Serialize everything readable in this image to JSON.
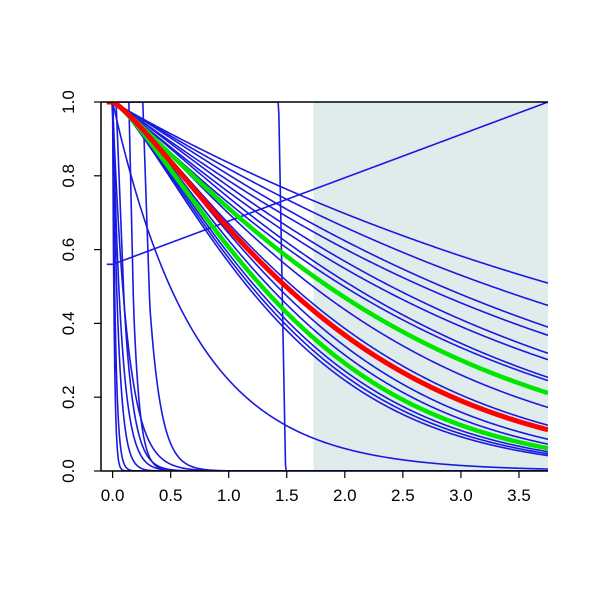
{
  "chart_data": {
    "type": "line",
    "title": "",
    "xlabel": "",
    "ylabel": "",
    "xlim": [
      -0.1,
      3.75
    ],
    "ylim": [
      0,
      1
    ],
    "grid": false,
    "legend": "none",
    "shaded_region": {
      "x_from": 1.73,
      "x_to": 3.75,
      "color": "#e0ecec"
    },
    "x_ticks": [
      "0.0",
      "0.5",
      "1.0",
      "1.5",
      "2.0",
      "2.5",
      "3.0",
      "3.5"
    ],
    "x_tick_values": [
      0,
      0.5,
      1.0,
      1.5,
      2.0,
      2.5,
      3.0,
      3.5
    ],
    "y_ticks": [
      "0.0",
      "0.2",
      "0.4",
      "0.6",
      "0.8",
      "1.0"
    ],
    "y_tick_values": [
      0,
      0.2,
      0.4,
      0.6,
      0.8,
      1.0
    ],
    "colors": {
      "blue": "#1a1adf",
      "red": "#ff0000",
      "green": "#00e600",
      "axis": "#000000"
    },
    "series": [
      {
        "color": "blue",
        "kind": "pow",
        "k": 0.18,
        "p": 1
      },
      {
        "color": "blue",
        "kind": "pow",
        "k": 0.2,
        "p": 1.05
      },
      {
        "color": "blue",
        "kind": "pow",
        "k": 0.22,
        "p": 1.1
      },
      {
        "color": "blue",
        "kind": "pow",
        "k": 0.24,
        "p": 1.08
      },
      {
        "color": "blue",
        "kind": "pow",
        "k": 0.26,
        "p": 1.12
      },
      {
        "color": "blue",
        "kind": "pow",
        "k": 0.28,
        "p": 1.1
      },
      {
        "color": "blue",
        "kind": "pow",
        "k": 0.3,
        "p": 1.15
      },
      {
        "color": "blue",
        "kind": "pow",
        "k": 0.32,
        "p": 1.12
      },
      {
        "color": "blue",
        "kind": "pow",
        "k": 0.36,
        "p": 1.2
      },
      {
        "color": "blue",
        "kind": "pow",
        "k": 0.4,
        "p": 1.25
      },
      {
        "color": "blue",
        "kind": "pow",
        "k": 0.44,
        "p": 1.3
      },
      {
        "color": "blue",
        "kind": "pow",
        "k": 0.47,
        "p": 1.3
      },
      {
        "color": "blue",
        "kind": "pow",
        "k": 0.5,
        "p": 1.3
      },
      {
        "color": "blue",
        "kind": "pow",
        "k": 0.53,
        "p": 1.3
      },
      {
        "color": "blue",
        "kind": "pow",
        "k": 0.55,
        "p": 1.3
      },
      {
        "color": "blue",
        "kind": "pow",
        "k": 0.57,
        "p": 1.3
      },
      {
        "color": "blue",
        "kind": "exp",
        "k": 1.4
      },
      {
        "color": "blue",
        "kind": "line",
        "y0": 0.56,
        "y1": 1.0
      },
      {
        "color": "blue",
        "kind": "exp",
        "k": 8.0
      },
      {
        "color": "blue",
        "kind": "exp",
        "k": 13.0
      },
      {
        "color": "blue",
        "kind": "exp",
        "k": 20.0
      },
      {
        "color": "blue",
        "kind": "exp",
        "k": 40.0
      },
      {
        "color": "blue",
        "kind": "exp",
        "k": 70.0
      },
      {
        "color": "blue",
        "kind": "cliff",
        "flat_to": 0.03,
        "drop_to": 0.1,
        "k": 12
      },
      {
        "color": "blue",
        "kind": "cliff",
        "flat_to": 0.26,
        "drop_to": 0.32,
        "k": 10
      },
      {
        "color": "blue",
        "kind": "cliff",
        "flat_to": 0.14,
        "drop_to": 0.18,
        "k": 18
      },
      {
        "color": "blue",
        "kind": "step",
        "at": 1.47,
        "top": 1.0
      },
      {
        "color": "green",
        "kind": "pow",
        "k": 0.34,
        "p": 1.15,
        "width": 4.5
      },
      {
        "color": "green",
        "kind": "pow",
        "k": 0.5,
        "p": 1.3,
        "width": 4.5
      },
      {
        "color": "red",
        "kind": "pow",
        "k": 0.42,
        "p": 1.25,
        "width": 5
      }
    ]
  }
}
